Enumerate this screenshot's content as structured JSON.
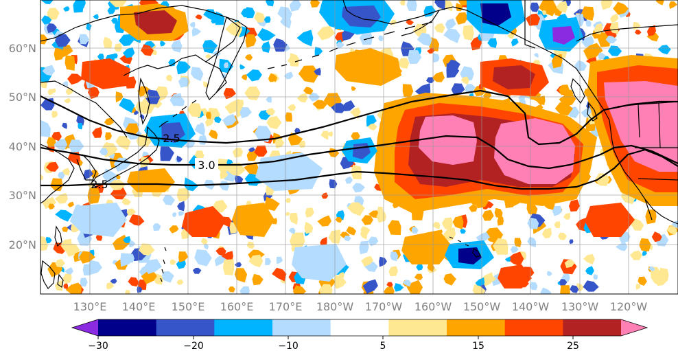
{
  "map": {
    "lat_labels": [
      "60°N",
      "50°N",
      "40°N",
      "30°N",
      "20°N"
    ],
    "lon_labels": [
      "130°E",
      "140°E",
      "150°E",
      "160°E",
      "170°E",
      "180°W",
      "170°W",
      "160°W",
      "150°W",
      "140°W",
      "130°W",
      "120°W"
    ],
    "contour_labels": [
      "2.5",
      "3.0",
      "2.5"
    ]
  },
  "colorbar": {
    "tick_labels": [
      "−30",
      "−20",
      "−10",
      "5",
      "15",
      "25"
    ],
    "colors": [
      "#8a2be2",
      "#00008b",
      "#3655c8",
      "#00b4ff",
      "#b4dcff",
      "#ffffff",
      "#ffe891",
      "#ffa500",
      "#ff4500",
      "#b22222",
      "#ff80b4"
    ]
  },
  "palette": {
    "land_line": "#000000",
    "grid": "#999999",
    "neg_purple": "#8a2be2",
    "neg_navy": "#00008b",
    "neg_blue": "#3655c8",
    "neg_cyan": "#00b4ff",
    "neg_light": "#b4dcff",
    "pos_yellow": "#ffe891",
    "pos_orange": "#ffa500",
    "pos_red": "#ff4500",
    "pos_darkred": "#b22222",
    "pos_pink": "#ff80b4"
  }
}
